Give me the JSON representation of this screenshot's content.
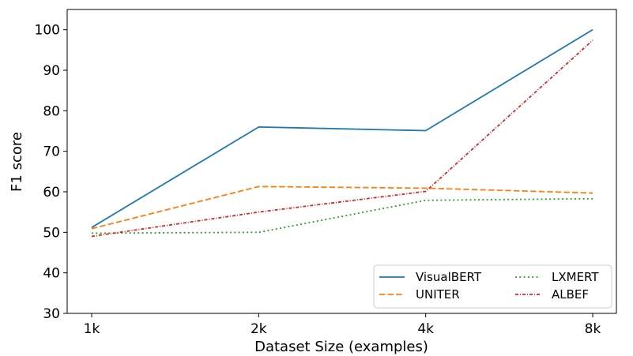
{
  "chart_data": {
    "type": "line",
    "title": "",
    "xlabel": "Dataset Size (examples)",
    "ylabel": "F1 score",
    "categories": [
      "1k",
      "2k",
      "4k",
      "8k"
    ],
    "ylim": [
      30,
      105
    ],
    "yticks": [
      30,
      40,
      50,
      60,
      70,
      80,
      90,
      100
    ],
    "grid": false,
    "legend_position": "bottom-right",
    "series": [
      {
        "name": "VisualBERT",
        "values": [
          51.2,
          76.0,
          75.1,
          100.0
        ],
        "color": "#1f77b4",
        "dash": "solid"
      },
      {
        "name": "UNITER",
        "values": [
          50.9,
          61.3,
          60.9,
          59.7
        ],
        "color": "#ff7f0e",
        "dash": "dashed"
      },
      {
        "name": "LXMERT",
        "values": [
          49.8,
          50.0,
          57.9,
          58.3
        ],
        "color": "#2ca02c",
        "dash": "dotted"
      },
      {
        "name": "ALBEF",
        "values": [
          49.0,
          55.0,
          60.1,
          97.4
        ],
        "color": "#d62728",
        "dash": "dashdot"
      }
    ]
  }
}
